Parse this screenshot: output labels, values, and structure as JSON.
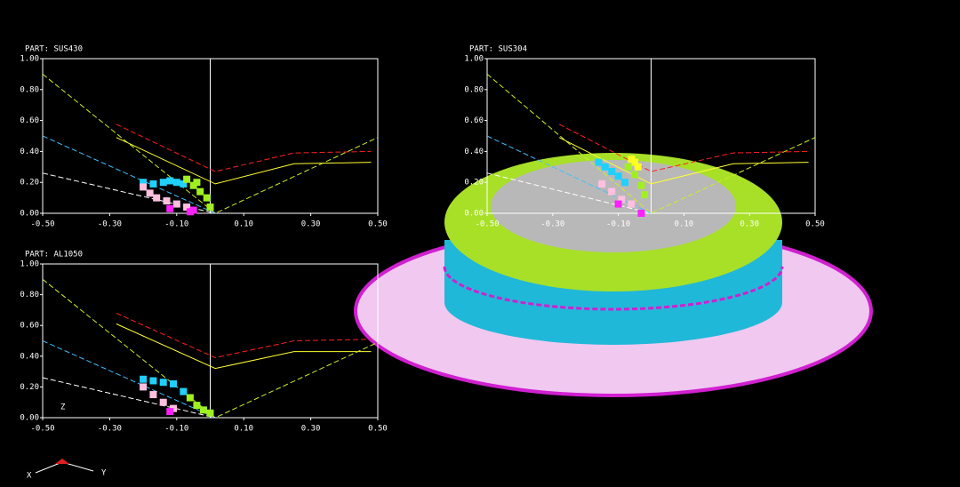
{
  "chart_data": [
    {
      "type": "scatter",
      "title": "PART:  SUS430",
      "xlim": [
        -0.5,
        0.5
      ],
      "ylim": [
        0,
        1
      ],
      "xticks": [
        {
          "value": -0.5,
          "label": "-0.50"
        },
        {
          "value": -0.3,
          "label": "-0.30"
        },
        {
          "value": -0.1,
          "label": "-0.10"
        },
        {
          "value": 0.1,
          "label": "0.10"
        },
        {
          "value": 0.3,
          "label": "0.30"
        },
        {
          "value": 0.5,
          "label": "0.50"
        }
      ],
      "yticks": [
        {
          "value": 0,
          "label": "0.00"
        },
        {
          "value": 0.2,
          "label": "0.20"
        },
        {
          "value": 0.4,
          "label": "0.40"
        },
        {
          "value": 0.6,
          "label": "0.60"
        },
        {
          "value": 0.8,
          "label": "0.80"
        },
        {
          "value": 1,
          "label": "1.00"
        }
      ],
      "lines": [
        {
          "color": "#ff2020",
          "dashed": true,
          "x": [
            -0.28,
            0.015,
            0.25,
            0.48
          ],
          "values": [
            0.575,
            0.27,
            0.39,
            0.4
          ]
        },
        {
          "color": "#ffff30",
          "dashed": false,
          "x": [
            -0.28,
            0.015,
            0.25,
            0.48
          ],
          "values": [
            0.49,
            0.19,
            0.32,
            0.33
          ]
        },
        {
          "color": "#ccee22",
          "dashed": true,
          "x": [
            -0.5,
            0.015,
            0.5
          ],
          "values": [
            0.9,
            0,
            0.49
          ]
        },
        {
          "color": "#40c0ff",
          "dashed": true,
          "x": [
            -0.5,
            0.015
          ],
          "values": [
            0.5,
            0
          ]
        },
        {
          "color": "#ffffff",
          "dashed": true,
          "x": [
            -0.5,
            0.015
          ],
          "values": [
            0.26,
            0
          ]
        }
      ],
      "points": [
        {
          "color": "#20d0ff",
          "x": [
            -0.2,
            -0.17,
            -0.14,
            -0.12,
            -0.1,
            -0.08
          ],
          "values": [
            0.2,
            0.19,
            0.2,
            0.21,
            0.2,
            0.19
          ]
        },
        {
          "color": "#ffc0e0",
          "x": [
            -0.2,
            -0.18,
            -0.16,
            -0.13,
            -0.1,
            -0.07
          ],
          "values": [
            0.17,
            0.13,
            0.1,
            0.08,
            0.06,
            0.04
          ]
        },
        {
          "color": "#a0f020",
          "x": [
            -0.07,
            -0.05,
            -0.03,
            -0.01,
            0.0,
            -0.04
          ],
          "values": [
            0.22,
            0.18,
            0.14,
            0.1,
            0.04,
            0.2
          ]
        },
        {
          "color": "#ff20ff",
          "x": [
            -0.12,
            -0.06,
            -0.05
          ],
          "values": [
            0.03,
            0.01,
            0.02
          ]
        }
      ]
    },
    {
      "type": "scatter",
      "title": "PART:  SUS304",
      "xlim": [
        -0.5,
        0.5
      ],
      "ylim": [
        0,
        1
      ],
      "xticks": [
        {
          "value": -0.5,
          "label": "-0.50"
        },
        {
          "value": -0.3,
          "label": "-0.30"
        },
        {
          "value": -0.1,
          "label": "-0.10"
        },
        {
          "value": 0.1,
          "label": "0.10"
        },
        {
          "value": 0.3,
          "label": "0.30"
        },
        {
          "value": 0.5,
          "label": "0.50"
        }
      ],
      "yticks": [
        {
          "value": 0,
          "label": "0.00"
        },
        {
          "value": 0.2,
          "label": "0.20"
        },
        {
          "value": 0.4,
          "label": "0.40"
        },
        {
          "value": 0.6,
          "label": "0.60"
        },
        {
          "value": 0.8,
          "label": "0.80"
        },
        {
          "value": 1,
          "label": "1.00"
        }
      ],
      "lines": [
        {
          "color": "#ff2020",
          "dashed": true,
          "x": [
            -0.28,
            0.0,
            0.25,
            0.48
          ],
          "values": [
            0.575,
            0.27,
            0.39,
            0.4
          ]
        },
        {
          "color": "#ffff30",
          "dashed": false,
          "x": [
            -0.28,
            0.0,
            0.25,
            0.48
          ],
          "values": [
            0.49,
            0.19,
            0.32,
            0.33
          ]
        },
        {
          "color": "#ccee22",
          "dashed": true,
          "x": [
            -0.5,
            0.0,
            0.5
          ],
          "values": [
            0.9,
            0,
            0.49
          ]
        },
        {
          "color": "#40c0ff",
          "dashed": true,
          "x": [
            -0.5,
            0.0
          ],
          "values": [
            0.5,
            0
          ]
        },
        {
          "color": "#ffffff",
          "dashed": true,
          "x": [
            -0.5,
            0.0
          ],
          "values": [
            0.26,
            0
          ]
        }
      ],
      "points": [
        {
          "color": "#20d0ff",
          "x": [
            -0.16,
            -0.14,
            -0.12,
            -0.1,
            -0.08
          ],
          "values": [
            0.33,
            0.3,
            0.27,
            0.24,
            0.2
          ]
        },
        {
          "color": "#ffc0e0",
          "x": [
            -0.15,
            -0.12,
            -0.09,
            -0.06
          ],
          "values": [
            0.19,
            0.14,
            0.09,
            0.06
          ]
        },
        {
          "color": "#ffff20",
          "x": [
            -0.05,
            -0.04,
            -0.06
          ],
          "values": [
            0.33,
            0.3,
            0.35
          ]
        },
        {
          "color": "#a0f020",
          "x": [
            -0.07,
            -0.05,
            -0.03,
            -0.02
          ],
          "values": [
            0.3,
            0.25,
            0.18,
            0.12
          ]
        },
        {
          "color": "#ff20ff",
          "x": [
            -0.1,
            -0.03
          ],
          "values": [
            0.06,
            0.0
          ]
        }
      ]
    },
    {
      "type": "scatter",
      "title": "PART:  AL1050",
      "annotation": "Z",
      "xlim": [
        -0.5,
        0.5
      ],
      "ylim": [
        0,
        1
      ],
      "xticks": [
        {
          "value": -0.5,
          "label": "-0.50"
        },
        {
          "value": -0.3,
          "label": "-0.30"
        },
        {
          "value": -0.1,
          "label": "-0.10"
        },
        {
          "value": 0.1,
          "label": "0.10"
        },
        {
          "value": 0.3,
          "label": "0.30"
        },
        {
          "value": 0.5,
          "label": "0.50"
        }
      ],
      "yticks": [
        {
          "value": 0,
          "label": "0.00"
        },
        {
          "value": 0.2,
          "label": "0.20"
        },
        {
          "value": 0.4,
          "label": "0.40"
        },
        {
          "value": 0.6,
          "label": "0.60"
        },
        {
          "value": 0.8,
          "label": "0.80"
        },
        {
          "value": 1,
          "label": "1.00"
        }
      ],
      "lines": [
        {
          "color": "#ff2020",
          "dashed": true,
          "x": [
            -0.28,
            0.015,
            0.25,
            0.48
          ],
          "values": [
            0.68,
            0.39,
            0.5,
            0.51
          ]
        },
        {
          "color": "#ffff30",
          "dashed": false,
          "x": [
            -0.28,
            0.015,
            0.25,
            0.48
          ],
          "values": [
            0.61,
            0.32,
            0.43,
            0.43
          ]
        },
        {
          "color": "#ccee22",
          "dashed": true,
          "x": [
            -0.5,
            0.015,
            0.5
          ],
          "values": [
            0.9,
            0,
            0.49
          ]
        },
        {
          "color": "#40c0ff",
          "dashed": true,
          "x": [
            -0.5,
            0.015
          ],
          "values": [
            0.5,
            0
          ]
        },
        {
          "color": "#ffffff",
          "dashed": true,
          "x": [
            -0.5,
            0.015
          ],
          "values": [
            0.26,
            0
          ]
        }
      ],
      "points": [
        {
          "color": "#20d0ff",
          "x": [
            -0.2,
            -0.17,
            -0.14,
            -0.11,
            -0.08
          ],
          "values": [
            0.25,
            0.24,
            0.23,
            0.22,
            0.17
          ]
        },
        {
          "color": "#ffc0e0",
          "x": [
            -0.2,
            -0.17,
            -0.14,
            -0.11
          ],
          "values": [
            0.2,
            0.15,
            0.1,
            0.06
          ]
        },
        {
          "color": "#a0f020",
          "x": [
            -0.06,
            -0.04,
            -0.02,
            0.0
          ],
          "values": [
            0.13,
            0.08,
            0.05,
            0.03
          ]
        },
        {
          "color": "#ff20ff",
          "x": [
            -0.12
          ],
          "values": [
            0.04
          ]
        }
      ]
    }
  ],
  "triad": {
    "x": "X",
    "y": "Y"
  }
}
